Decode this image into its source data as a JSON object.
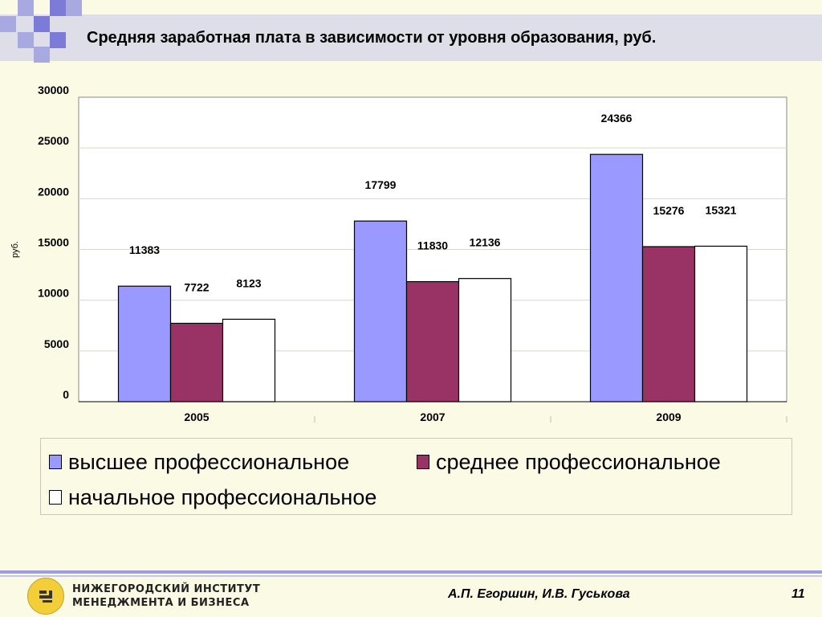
{
  "slide": {
    "title": "Средняя заработная плата в зависимости от уровня образования, руб."
  },
  "chart_data": {
    "type": "bar",
    "categories": [
      "2005",
      "2007",
      "2009"
    ],
    "series": [
      {
        "name": "высшее профессиональное",
        "values": [
          11383,
          17799,
          24366
        ],
        "color": "#9999ff"
      },
      {
        "name": "среднее профессиональное",
        "values": [
          7722,
          11830,
          15276
        ],
        "color": "#993366"
      },
      {
        "name": "начальное профессиональное",
        "values": [
          8123,
          12136,
          15321
        ],
        "color": "#ffffff"
      }
    ],
    "ylabel": "руб.",
    "ylim": [
      0,
      30000
    ],
    "yticks": [
      0,
      5000,
      10000,
      15000,
      20000,
      25000,
      30000
    ],
    "grid": true,
    "legend_position": "bottom",
    "plot_background": "#ffffff"
  },
  "footer": {
    "institute_line1": "НИЖЕГОРОДСКИЙ ИНСТИТУТ",
    "institute_line2": "МЕНЕДЖМЕНТА И БИЗНЕСА",
    "authors": "А.П. Егоршин,  И.В. Гуськова",
    "page_number": "11"
  }
}
